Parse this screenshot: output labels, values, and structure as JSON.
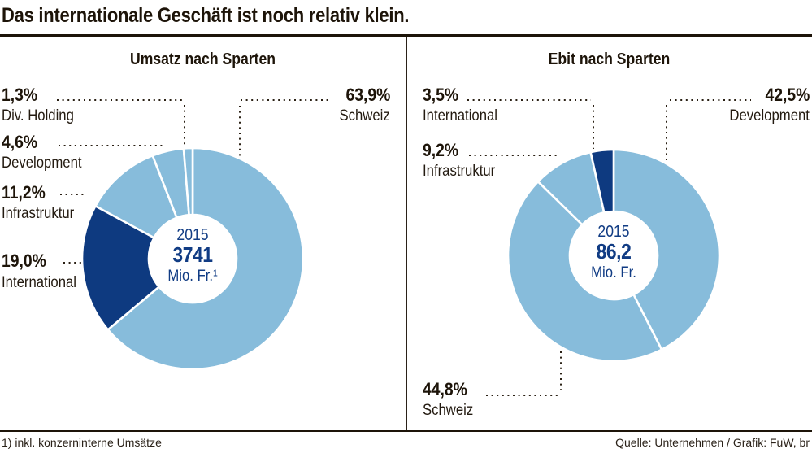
{
  "title": "Das internationale Geschäft ist noch relativ klein.",
  "footnote": "1) inkl. konzerninterne Umsätze",
  "source": "Quelle: Unternehmen / Grafik: FuW, br",
  "colors": {
    "light": "#87bcdb",
    "dark": "#0e3a80",
    "center_text": "#113c84",
    "ink": "#2a2014"
  },
  "chart_data": [
    {
      "type": "pie",
      "title": "Umsatz nach Sparten",
      "year": "2015",
      "total": "3741",
      "unit": "Mio. Fr.¹",
      "start_angle_deg": 0,
      "direction": "clockwise",
      "donut": true,
      "slices": [
        {
          "label": "Schweiz",
          "pct_label": "63,9%",
          "value": 63.9,
          "color_key": "light"
        },
        {
          "label": "International",
          "pct_label": "19,0%",
          "value": 19.0,
          "color_key": "dark"
        },
        {
          "label": "Infrastruktur",
          "pct_label": "11,2%",
          "value": 11.2,
          "color_key": "light"
        },
        {
          "label": "Development",
          "pct_label": "4,6%",
          "value": 4.6,
          "color_key": "light"
        },
        {
          "label": "Div. Holding",
          "pct_label": "1,3%",
          "value": 1.3,
          "color_key": "light"
        }
      ]
    },
    {
      "type": "pie",
      "title": "Ebit nach Sparten",
      "year": "2015",
      "total": "86,2",
      "unit": "Mio. Fr.",
      "start_angle_deg": 0,
      "direction": "clockwise",
      "donut": true,
      "slices": [
        {
          "label": "Development",
          "pct_label": "42,5%",
          "value": 42.5,
          "color_key": "light"
        },
        {
          "label": "Schweiz",
          "pct_label": "44,8%",
          "value": 44.8,
          "color_key": "light"
        },
        {
          "label": "Infrastruktur",
          "pct_label": "9,2%",
          "value": 9.2,
          "color_key": "light"
        },
        {
          "label": "International",
          "pct_label": "3,5%",
          "value": 3.5,
          "color_key": "dark"
        }
      ]
    }
  ]
}
